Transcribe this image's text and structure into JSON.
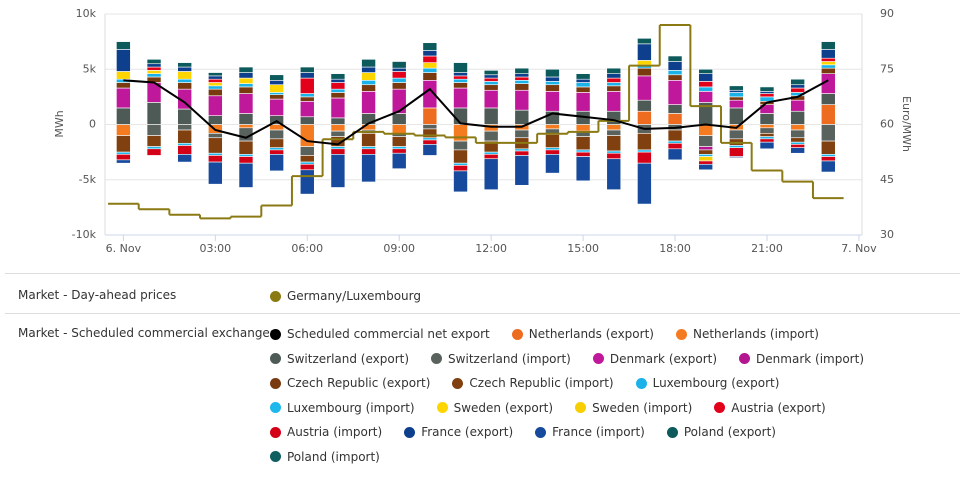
{
  "chart_data": {
    "type": "bar",
    "y_label": "MWh",
    "y2_label": "Euro/MWh",
    "x": [
      0,
      1,
      2,
      3,
      4,
      5,
      6,
      7,
      8,
      9,
      10,
      11,
      12,
      13,
      14,
      15,
      16,
      17,
      18,
      19,
      20,
      21,
      22,
      23
    ],
    "xlim": [
      -0.6,
      24.1
    ],
    "xticks": [
      {
        "value": 0,
        "label": "6. Nov"
      },
      {
        "value": 3,
        "label": "03:00"
      },
      {
        "value": 6,
        "label": "06:00"
      },
      {
        "value": 9,
        "label": "09:00"
      },
      {
        "value": 12,
        "label": "12:00"
      },
      {
        "value": 15,
        "label": "15:00"
      },
      {
        "value": 18,
        "label": "18:00"
      },
      {
        "value": 21,
        "label": "21:00"
      },
      {
        "value": 24,
        "label": "7. Nov"
      }
    ],
    "ylim": [
      -10000,
      10000
    ],
    "yticks": [
      {
        "value": -10000,
        "label": "-10k"
      },
      {
        "value": -5000,
        "label": "-5k"
      },
      0,
      {
        "value": 5000,
        "label": "5k"
      },
      {
        "value": 10000,
        "label": "10k"
      }
    ],
    "y2lim": [
      30,
      90
    ],
    "y2ticks": [
      30,
      45,
      60,
      75,
      90
    ],
    "grid": true,
    "legend_groups": [
      "Market - Day-ahead prices",
      "Market - Scheduled commercial exchanges"
    ],
    "series": [
      {
        "name": "Germany/Luxembourg",
        "kind": "step",
        "axis": "y2",
        "color": "#8b7a14",
        "values": [
          38.5,
          37,
          35.5,
          34.5,
          35,
          38,
          46,
          56,
          58,
          57.5,
          57,
          56.5,
          55,
          55,
          57.5,
          58,
          61,
          76,
          87,
          65,
          55,
          47.5,
          44.5,
          40
        ]
      },
      {
        "name": "Scheduled commercial net export",
        "kind": "line",
        "color": "#000000",
        "values": [
          4000,
          3800,
          2000,
          -500,
          -1200,
          300,
          -1500,
          -1800,
          100,
          1200,
          3200,
          100,
          -200,
          -200,
          1000,
          700,
          400,
          -400,
          -300,
          0,
          -300,
          2000,
          2500,
          4000
        ]
      },
      {
        "name": "Netherlands (export)",
        "kind": "bar",
        "color": "#ee6c1f",
        "values": [
          0,
          0,
          0,
          0,
          0,
          0,
          0,
          0,
          0,
          0,
          1500,
          0,
          0,
          0,
          0,
          0,
          0,
          1200,
          1000,
          0,
          0,
          0,
          0,
          1800
        ]
      },
      {
        "name": "Netherlands (import)",
        "kind": "bar",
        "color": "#f47b20",
        "values": [
          -1000,
          0,
          0,
          -800,
          -300,
          -500,
          -2000,
          -600,
          -500,
          -800,
          0,
          -1500,
          -600,
          -500,
          -400,
          -600,
          -500,
          0,
          0,
          -1000,
          -500,
          -300,
          -500,
          0
        ]
      },
      {
        "name": "Switzerland (export)",
        "kind": "bar",
        "color": "#4d5a55",
        "values": [
          1500,
          2000,
          1400,
          800,
          1000,
          800,
          700,
          600,
          1000,
          1000,
          0,
          1500,
          1500,
          1300,
          1200,
          1200,
          1200,
          1000,
          800,
          2000,
          1500,
          1000,
          1200,
          1000
        ]
      },
      {
        "name": "Switzerland (import)",
        "kind": "bar",
        "color": "#59625d",
        "values": [
          0,
          -1000,
          -500,
          -400,
          -1200,
          -800,
          -800,
          -500,
          -300,
          -300,
          -400,
          -800,
          -900,
          -700,
          -500,
          -500,
          -500,
          -800,
          -500,
          -1000,
          -800,
          -500,
          -700,
          -1500
        ]
      },
      {
        "name": "Denmark (export)",
        "kind": "bar",
        "color": "#c0189a",
        "values": [
          1800,
          1800,
          1800,
          1800,
          1800,
          1500,
          1400,
          1800,
          2000,
          2200,
          2500,
          1800,
          1600,
          1800,
          1800,
          1700,
          1800,
          2200,
          2200,
          1000,
          700,
          800,
          1000,
          1800
        ]
      },
      {
        "name": "Denmark (import)",
        "kind": "bar",
        "color": "#b3168f",
        "values": [
          0,
          0,
          0,
          0,
          0,
          0,
          0,
          0,
          0,
          0,
          0,
          0,
          0,
          0,
          0,
          0,
          0,
          0,
          0,
          -300,
          0,
          0,
          0,
          0
        ]
      },
      {
        "name": "Czech Republic (export)",
        "kind": "bar",
        "color": "#7a3a10",
        "values": [
          500,
          500,
          600,
          600,
          600,
          400,
          400,
          500,
          600,
          600,
          700,
          500,
          500,
          600,
          600,
          500,
          500,
          700,
          500,
          0,
          300,
          300,
          400,
          500
        ]
      },
      {
        "name": "Czech Republic (import)",
        "kind": "bar",
        "color": "#80400f",
        "values": [
          -1500,
          -1000,
          -1200,
          -1400,
          -1200,
          -800,
          -600,
          -900,
          -1200,
          -900,
          -800,
          -1200,
          -1000,
          -1000,
          -1200,
          -1200,
          -1400,
          -1500,
          -1000,
          -400,
          -600,
          -300,
          -400,
          -1200
        ]
      },
      {
        "name": "Luxembourg (export)",
        "kind": "bar",
        "color": "#1ab2e8",
        "values": [
          300,
          300,
          300,
          300,
          300,
          200,
          300,
          300,
          400,
          400,
          400,
          300,
          300,
          300,
          300,
          400,
          300,
          300,
          400,
          400,
          400,
          400,
          300,
          300
        ]
      },
      {
        "name": "Luxembourg (import)",
        "kind": "bar",
        "color": "#1fb8ec",
        "values": [
          -200,
          -200,
          -200,
          -200,
          -200,
          -200,
          -200,
          -200,
          -200,
          -200,
          -200,
          -200,
          -200,
          -200,
          -200,
          -200,
          -200,
          -200,
          -200,
          -200,
          -200,
          -200,
          -200,
          -200
        ]
      },
      {
        "name": "Sweden (export)",
        "kind": "bar",
        "color": "#ffd500",
        "values": [
          700,
          300,
          700,
          300,
          500,
          700,
          0,
          0,
          700,
          0,
          500,
          0,
          0,
          0,
          0,
          0,
          0,
          400,
          0,
          0,
          0,
          0,
          0,
          300
        ]
      },
      {
        "name": "Sweden (import)",
        "kind": "bar",
        "color": "#f7ce00",
        "values": [
          0,
          0,
          0,
          0,
          0,
          0,
          0,
          0,
          0,
          0,
          0,
          0,
          0,
          0,
          0,
          0,
          0,
          0,
          0,
          -400,
          0,
          0,
          0,
          0
        ]
      },
      {
        "name": "Austria (export)",
        "kind": "bar",
        "color": "#e3001b",
        "values": [
          0,
          300,
          0,
          300,
          0,
          0,
          1400,
          600,
          0,
          600,
          600,
          300,
          300,
          300,
          0,
          0,
          400,
          0,
          0,
          500,
          0,
          300,
          400,
          300
        ]
      },
      {
        "name": "Austria (import)",
        "kind": "bar",
        "color": "#d40017",
        "values": [
          -500,
          -600,
          -800,
          -600,
          -600,
          -400,
          -500,
          -500,
          -500,
          -400,
          -400,
          -500,
          -400,
          -400,
          -400,
          -400,
          -500,
          -1000,
          -500,
          -300,
          -800,
          -300,
          -300,
          -400
        ]
      },
      {
        "name": "France (export)",
        "kind": "bar",
        "color": "#0e3f8c",
        "values": [
          2000,
          300,
          400,
          300,
          500,
          400,
          500,
          300,
          500,
          300,
          500,
          300,
          300,
          300,
          400,
          300,
          400,
          1500,
          800,
          700,
          200,
          200,
          300,
          800
        ]
      },
      {
        "name": "France (import)",
        "kind": "bar",
        "color": "#174a9c",
        "values": [
          -300,
          0,
          -700,
          -2000,
          -2200,
          -1500,
          -2200,
          -3000,
          -2500,
          -1400,
          -1000,
          -1900,
          -2800,
          -2700,
          -1700,
          -2200,
          -2800,
          -3700,
          -1000,
          -500,
          -100,
          -600,
          -500,
          -1000
        ]
      },
      {
        "name": "Poland (export)",
        "kind": "bar",
        "color": "#0c5a5c",
        "values": [
          700,
          400,
          400,
          300,
          500,
          500,
          500,
          500,
          700,
          600,
          700,
          900,
          400,
          500,
          700,
          500,
          500,
          500,
          500,
          400,
          400,
          400,
          500,
          700
        ]
      },
      {
        "name": "Poland (import)",
        "kind": "bar",
        "color": "#0f5f61",
        "values": [
          0,
          0,
          0,
          0,
          0,
          0,
          0,
          0,
          0,
          0,
          0,
          0,
          0,
          0,
          0,
          0,
          0,
          0,
          0,
          0,
          0,
          0,
          0,
          0
        ]
      }
    ]
  }
}
